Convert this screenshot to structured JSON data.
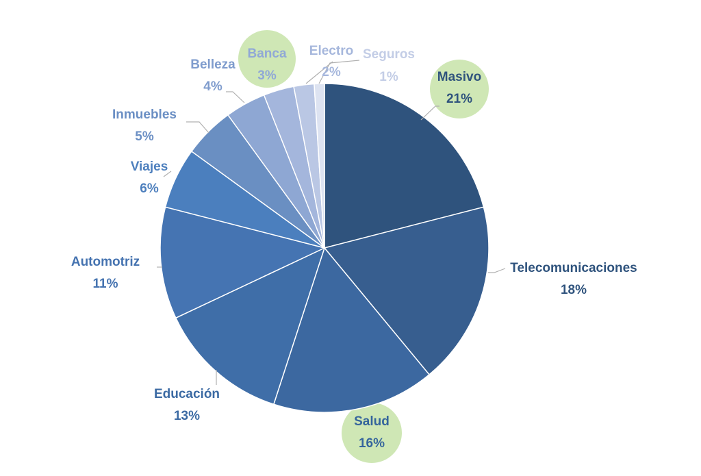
{
  "chart_data": {
    "type": "pie",
    "title": "",
    "start": "top, clockwise",
    "slices": [
      {
        "label": "Masivo",
        "value": 21,
        "display": "21%",
        "color": "#2f537d",
        "text_color": "#2f537d",
        "highlight": true
      },
      {
        "label": "Telecomunicaciones",
        "value": 18,
        "display": "18%",
        "color": "#375e8f",
        "text_color": "#2f537d",
        "highlight": false
      },
      {
        "label": "Salud",
        "value": 16,
        "display": "16%",
        "color": "#3c68a0",
        "text_color": "#35659c",
        "highlight": true
      },
      {
        "label": "Educación",
        "value": 13,
        "display": "13%",
        "color": "#3f6ea8",
        "text_color": "#3b6aa3",
        "highlight": false
      },
      {
        "label": "Automotriz",
        "value": 11,
        "display": "11%",
        "color": "#4574b2",
        "text_color": "#4573b0",
        "highlight": false
      },
      {
        "label": "Viajes",
        "value": 6,
        "display": "6%",
        "color": "#4b7fbe",
        "text_color": "#4d7fbd",
        "highlight": false
      },
      {
        "label": "Inmuebles",
        "value": 5,
        "display": "5%",
        "color": "#6a8fc2",
        "text_color": "#6b8fc4",
        "highlight": false
      },
      {
        "label": "Belleza",
        "value": 4,
        "display": "4%",
        "color": "#8ea7d3",
        "text_color": "#7f9ccd",
        "highlight": false
      },
      {
        "label": "Banca",
        "value": 3,
        "display": "3%",
        "color": "#a4b6dc",
        "text_color": "#90a8d6",
        "highlight": true
      },
      {
        "label": "Electro",
        "value": 2,
        "display": "2%",
        "color": "#bac7e4",
        "text_color": "#a6b7dc",
        "highlight": false
      },
      {
        "label": "Seguros",
        "value": 1,
        "display": "1%",
        "color": "#dde3f1",
        "text_color": "#c3cde6",
        "highlight": false
      }
    ],
    "highlight_color": "#cfe7b5",
    "leader_color": "#b0b0b0",
    "grid": false,
    "legend": "none (data labels)"
  }
}
